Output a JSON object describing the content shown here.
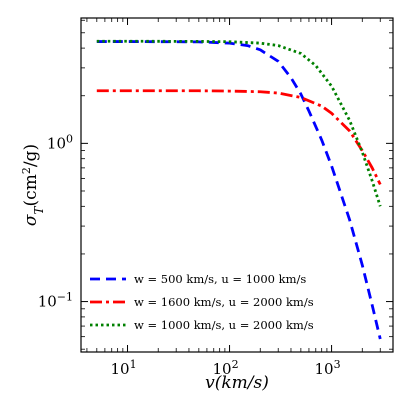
{
  "chart_data": {
    "type": "line",
    "xlabel": "v(km/s)",
    "ylabel": "σ_T(cm^2/g)",
    "xscale": "log",
    "yscale": "log",
    "xlim": [
      3.5,
      4000
    ],
    "ylim": [
      0.048,
      6.2
    ],
    "x_ticks": [
      {
        "value": 10,
        "label": "10^1"
      },
      {
        "value": 100,
        "label": "10^2"
      },
      {
        "value": 1000,
        "label": "10^3"
      }
    ],
    "y_ticks": [
      {
        "value": 0.1,
        "label": "10^-1"
      },
      {
        "value": 1,
        "label": "10^0"
      }
    ],
    "grid": false,
    "legend_position": "bottom-left",
    "series": [
      {
        "name": "w = 500 km/s, u = 1000 km/s",
        "color": "#0000ff",
        "style": "dashed",
        "x": [
          5,
          10,
          50,
          100,
          150,
          200,
          300,
          400,
          500,
          600,
          800,
          1000,
          1500,
          2000,
          2500,
          3000
        ],
        "y": [
          4.4,
          4.4,
          4.38,
          4.3,
          4.15,
          3.9,
          3.3,
          2.6,
          2.05,
          1.6,
          1.05,
          0.72,
          0.33,
          0.17,
          0.095,
          0.058
        ]
      },
      {
        "name": "w = 1600 km/s, u = 2000 km/s",
        "color": "#ff0000",
        "style": "dashdot",
        "x": [
          5,
          10,
          50,
          100,
          200,
          300,
          500,
          800,
          1000,
          1500,
          2000,
          2500,
          3000
        ],
        "y": [
          2.15,
          2.15,
          2.15,
          2.14,
          2.12,
          2.08,
          1.95,
          1.72,
          1.55,
          1.2,
          0.9,
          0.7,
          0.55
        ]
      },
      {
        "name": "w = 1000 km/s, u = 2000 km/s",
        "color": "#008000",
        "style": "dotted",
        "x": [
          5,
          10,
          50,
          100,
          200,
          300,
          500,
          700,
          1000,
          1500,
          2000,
          2500,
          3000
        ],
        "y": [
          4.42,
          4.42,
          4.41,
          4.39,
          4.3,
          4.15,
          3.7,
          3.1,
          2.3,
          1.4,
          0.88,
          0.58,
          0.4
        ]
      }
    ]
  }
}
